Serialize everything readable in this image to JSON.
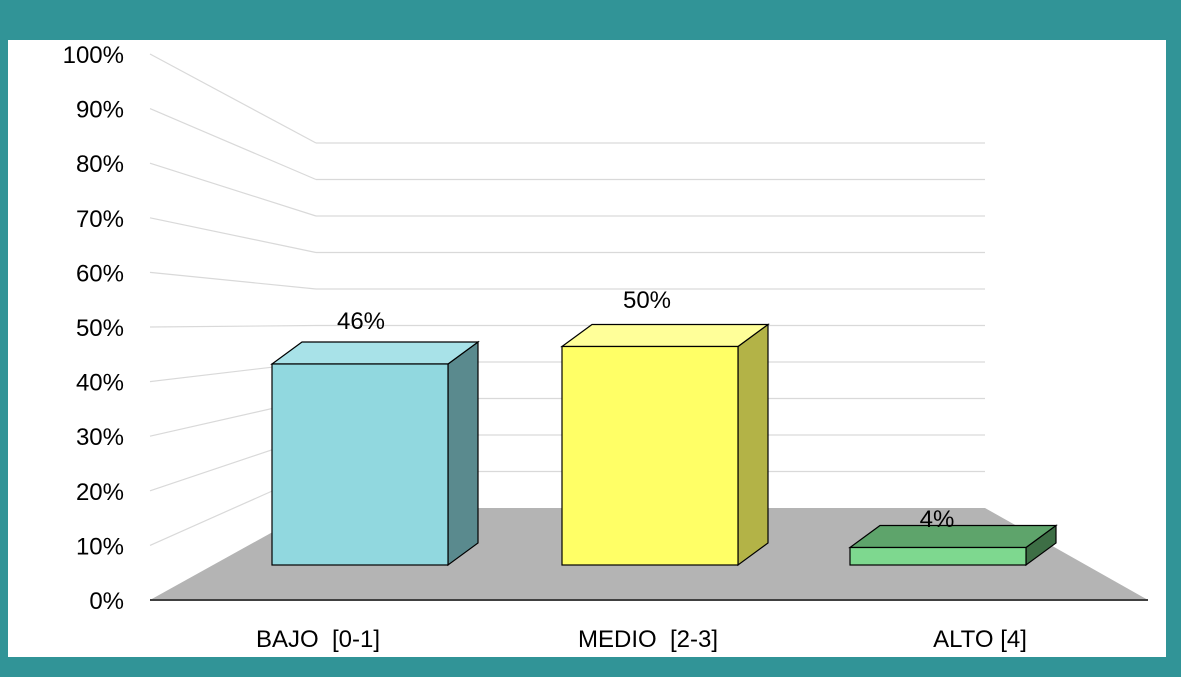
{
  "chart_data": {
    "type": "bar",
    "style": "3d",
    "categories": [
      "BAJO  [0-1]",
      "MEDIO  [2-3]",
      "ALTO [4]"
    ],
    "values": [
      46,
      50,
      4
    ],
    "data_labels": [
      "46%",
      "50%",
      "4%"
    ],
    "ylim": [
      0,
      100
    ],
    "yticks": [
      "0%",
      "10%",
      "20%",
      "30%",
      "40%",
      "50%",
      "60%",
      "70%",
      "80%",
      "90%",
      "100%"
    ],
    "grid": true,
    "legend": "none",
    "colors": {
      "background_border": "#319497",
      "floor": "#b4b4b4",
      "gridline": "#d9d9d9",
      "bar_fronts": [
        "#91d8df",
        "#ffff66",
        "#7ed88f"
      ],
      "bar_sides": [
        "#5a8a8e",
        "#b3b347",
        "#3d6e45"
      ],
      "bar_tops": [
        "#a8e2e8",
        "#ffff99",
        "#5ea46b"
      ]
    }
  }
}
